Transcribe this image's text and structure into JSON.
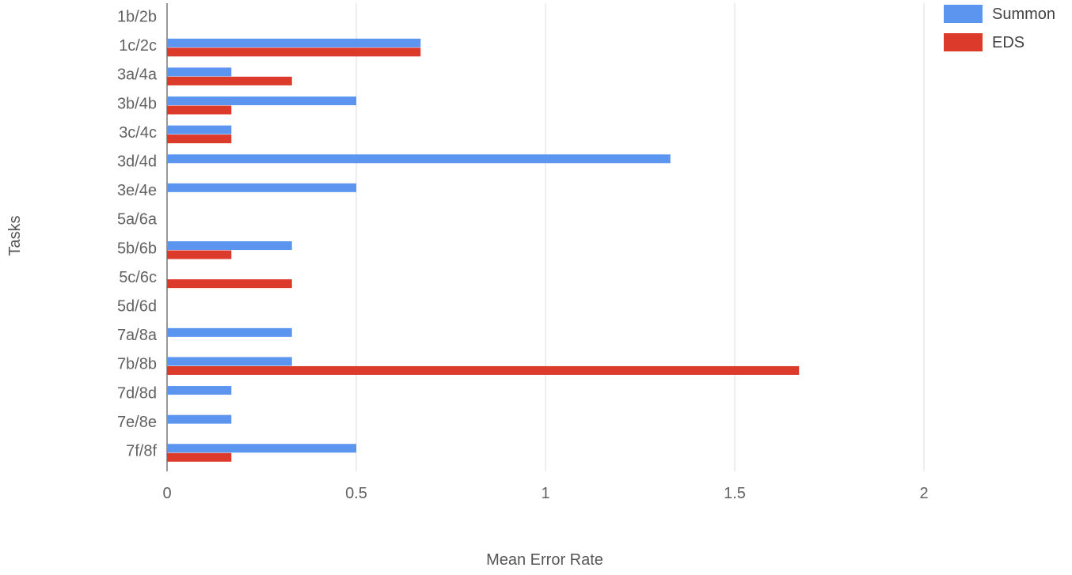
{
  "chart_data": {
    "type": "bar",
    "orientation": "horizontal",
    "title": "",
    "xlabel": "Mean Error Rate",
    "ylabel": "Tasks",
    "xlim": [
      0,
      2
    ],
    "xticks": [
      0,
      0.5,
      1,
      1.5,
      2
    ],
    "xtick_labels": [
      "0",
      "0.5",
      "1",
      "1.5",
      "2"
    ],
    "grid": true,
    "legend_position": "top-right",
    "categories": [
      "1b/2b",
      "1c/2c",
      "3a/4a",
      "3b/4b",
      "3c/4c",
      "3d/4d",
      "3e/4e",
      "5a/6a",
      "5b/6b",
      "5c/6c",
      "5d/6d",
      "7a/8a",
      "7b/8b",
      "7d/8d",
      "7e/8e",
      "7f/8f"
    ],
    "series": [
      {
        "name": "Summon",
        "color": "#5b95f0",
        "values": [
          0,
          0.67,
          0.17,
          0.5,
          0.17,
          1.33,
          0.5,
          0,
          0.33,
          0,
          0,
          0.33,
          0.33,
          0.17,
          0.17,
          0.5
        ]
      },
      {
        "name": "EDS",
        "color": "#dc3b2c",
        "values": [
          0,
          0.67,
          0.33,
          0.17,
          0.17,
          0,
          0,
          0,
          0.17,
          0.33,
          0,
          0,
          1.67,
          0,
          0,
          0.17
        ]
      }
    ]
  }
}
